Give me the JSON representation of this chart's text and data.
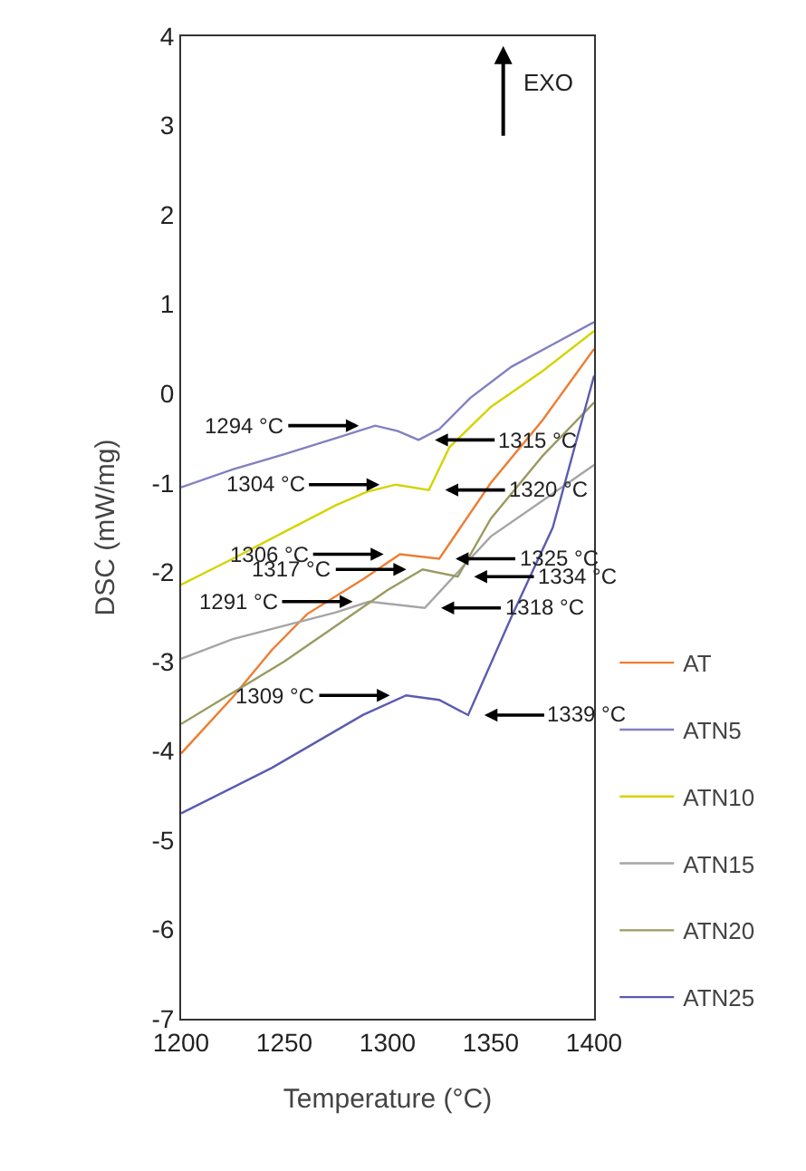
{
  "chart_data": {
    "type": "line",
    "xlabel": "Temperature (°C)",
    "ylabel": "DSC (mW/mg)",
    "xlim": [
      1200,
      1400
    ],
    "xticks": [
      1200,
      1250,
      1300,
      1350,
      1400
    ],
    "ylim": [
      -7,
      4
    ],
    "yticks": [
      -7,
      -6,
      -5,
      -4,
      -3,
      -2,
      -1,
      0,
      1,
      2,
      3,
      4
    ],
    "grid": false,
    "legend": "right",
    "marker": "none",
    "line_style": "solid",
    "series": [
      {
        "name": "AT",
        "color": "#ed7d31",
        "x": [
          1200,
          1225,
          1244,
          1261,
          1288,
          1306,
          1325,
          1350,
          1375,
          1400
        ],
        "values": [
          -4.03,
          -3.4,
          -2.87,
          -2.47,
          -2.08,
          -1.8,
          -1.85,
          -1.0,
          -0.3,
          0.5
        ]
      },
      {
        "name": "ATN5",
        "color": "#8080c0",
        "x": [
          1200,
          1225,
          1250,
          1275,
          1294,
          1305,
          1315,
          1325,
          1340,
          1360,
          1380,
          1400
        ],
        "values": [
          -1.05,
          -0.85,
          -0.68,
          -0.5,
          -0.36,
          -0.42,
          -0.52,
          -0.4,
          -0.05,
          0.3,
          0.55,
          0.8
        ]
      },
      {
        "name": "ATN10",
        "color": "#d4d400",
        "x": [
          1200,
          1225,
          1250,
          1275,
          1290,
          1304,
          1320,
          1330,
          1350,
          1375,
          1400
        ],
        "values": [
          -2.14,
          -1.85,
          -1.55,
          -1.25,
          -1.1,
          -1.02,
          -1.08,
          -0.6,
          -0.15,
          0.25,
          0.7
        ]
      },
      {
        "name": "ATN15",
        "color": "#a5a5a5",
        "x": [
          1200,
          1225,
          1250,
          1275,
          1291,
          1318,
          1330,
          1350,
          1375,
          1400
        ],
        "values": [
          -2.97,
          -2.75,
          -2.6,
          -2.45,
          -2.33,
          -2.4,
          -2.1,
          -1.6,
          -1.2,
          -0.8
        ]
      },
      {
        "name": "ATN20",
        "color": "#9a9a60",
        "x": [
          1200,
          1250,
          1275,
          1300,
          1317,
          1334,
          1350,
          1375,
          1400
        ],
        "values": [
          -3.7,
          -3.0,
          -2.6,
          -2.2,
          -1.97,
          -2.05,
          -1.4,
          -0.7,
          -0.1
        ]
      },
      {
        "name": "ATN25",
        "color": "#5b5bb0",
        "x": [
          1200,
          1244,
          1288,
          1309,
          1325,
          1339,
          1360,
          1380,
          1400
        ],
        "values": [
          -4.7,
          -4.19,
          -3.6,
          -3.38,
          -3.43,
          -3.6,
          -2.5,
          -1.5,
          0.2
        ]
      }
    ],
    "annotations": [
      {
        "text": "1294 °C",
        "x": 1294,
        "y": -0.36
      },
      {
        "text": "1315 °C",
        "x": 1315,
        "y": -0.52
      },
      {
        "text": "1304 °C",
        "x": 1304,
        "y": -1.02
      },
      {
        "text": "1320 °C",
        "x": 1320,
        "y": -1.08
      },
      {
        "text": "1306 °C",
        "x": 1306,
        "y": -1.8
      },
      {
        "text": "1325 °C",
        "x": 1325,
        "y": -1.85
      },
      {
        "text": "1317 °C",
        "x": 1317,
        "y": -1.97
      },
      {
        "text": "1334 °C",
        "x": 1334,
        "y": -2.05
      },
      {
        "text": "1291 °C",
        "x": 1291,
        "y": -2.33
      },
      {
        "text": "1318 °C",
        "x": 1318,
        "y": -2.4
      },
      {
        "text": "1309 °C",
        "x": 1309,
        "y": -3.38
      },
      {
        "text": "1339 °C",
        "x": 1339,
        "y": -3.6
      },
      "EXO"
    ]
  }
}
